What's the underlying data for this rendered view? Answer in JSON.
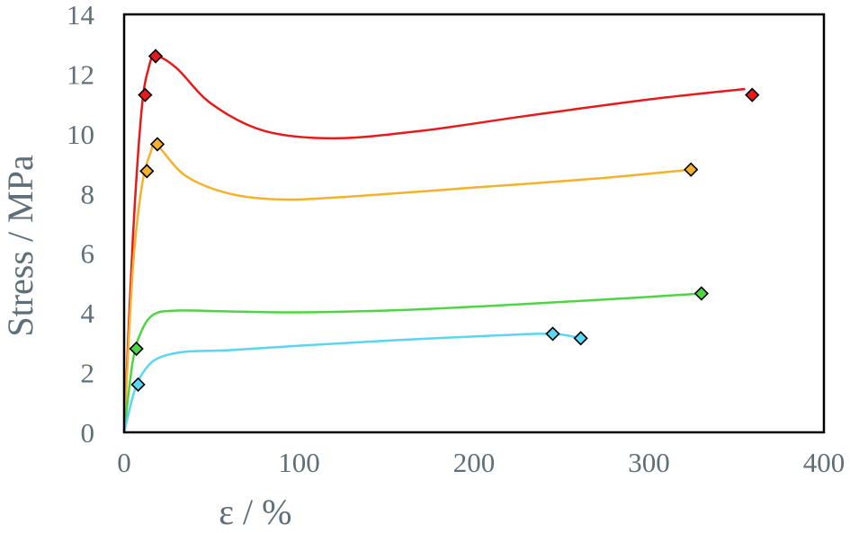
{
  "chart_data": {
    "type": "scatter",
    "title": "",
    "xlabel": "ε / %",
    "ylabel": "Stress / MPa",
    "xlim": [
      0,
      400
    ],
    "ylim": [
      0,
      14
    ],
    "xticks": [
      0,
      100,
      200,
      300,
      400
    ],
    "yticks": [
      0,
      2,
      4,
      6,
      8,
      10,
      12,
      14
    ],
    "grid": false,
    "legend": "none",
    "series": [
      {
        "color": "#e8191b",
        "points": [
          [
            12,
            11.3
          ],
          [
            18,
            12.6
          ],
          [
            359,
            11.3
          ]
        ],
        "curve": [
          [
            0,
            0
          ],
          [
            5,
            6.5
          ],
          [
            10,
            10.8
          ],
          [
            14,
            12.2
          ],
          [
            18,
            12.6
          ],
          [
            30,
            12.2
          ],
          [
            50,
            11.0
          ],
          [
            80,
            10.1
          ],
          [
            120,
            9.85
          ],
          [
            170,
            10.1
          ],
          [
            230,
            10.6
          ],
          [
            300,
            11.15
          ],
          [
            355,
            11.5
          ]
        ]
      },
      {
        "color": "#f5b12a",
        "points": [
          [
            13,
            8.75
          ],
          [
            19,
            9.65
          ],
          [
            324,
            8.8
          ]
        ],
        "curve": [
          [
            0,
            0
          ],
          [
            5,
            5.5
          ],
          [
            10,
            8.2
          ],
          [
            15,
            9.35
          ],
          [
            19,
            9.6
          ],
          [
            35,
            8.6
          ],
          [
            60,
            8.0
          ],
          [
            90,
            7.8
          ],
          [
            130,
            7.9
          ],
          [
            200,
            8.2
          ],
          [
            270,
            8.5
          ],
          [
            324,
            8.8
          ]
        ]
      },
      {
        "color": "#4ed543",
        "points": [
          [
            7,
            2.8
          ],
          [
            330,
            4.65
          ]
        ],
        "curve": [
          [
            0,
            0
          ],
          [
            5,
            2.4
          ],
          [
            10,
            3.4
          ],
          [
            17,
            3.95
          ],
          [
            30,
            4.08
          ],
          [
            60,
            4.05
          ],
          [
            100,
            4.02
          ],
          [
            160,
            4.1
          ],
          [
            230,
            4.3
          ],
          [
            290,
            4.5
          ],
          [
            330,
            4.65
          ]
        ]
      },
      {
        "color": "#58d6f2",
        "points": [
          [
            8,
            1.6
          ],
          [
            245,
            3.3
          ],
          [
            261,
            3.15
          ]
        ],
        "curve": [
          [
            0,
            0
          ],
          [
            6,
            1.4
          ],
          [
            12,
            2.1
          ],
          [
            20,
            2.5
          ],
          [
            35,
            2.7
          ],
          [
            60,
            2.75
          ],
          [
            100,
            2.9
          ],
          [
            160,
            3.1
          ],
          [
            215,
            3.25
          ],
          [
            245,
            3.3
          ],
          [
            261,
            3.15
          ]
        ]
      }
    ]
  }
}
